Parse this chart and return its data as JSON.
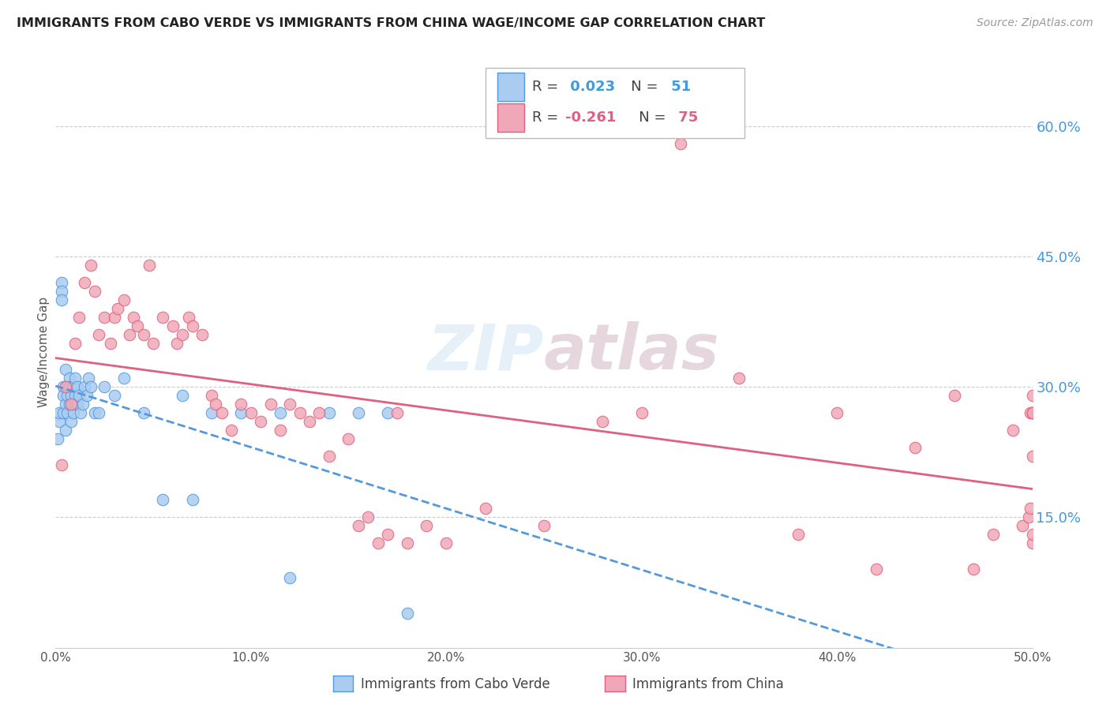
{
  "title": "IMMIGRANTS FROM CABO VERDE VS IMMIGRANTS FROM CHINA WAGE/INCOME GAP CORRELATION CHART",
  "source": "Source: ZipAtlas.com",
  "ylabel": "Wage/Income Gap",
  "ytick_labels": [
    "15.0%",
    "30.0%",
    "45.0%",
    "60.0%"
  ],
  "ytick_values": [
    15.0,
    30.0,
    45.0,
    60.0
  ],
  "xmin": 0.0,
  "xmax": 50.0,
  "ymin": 0.0,
  "ymax": 68.0,
  "cabo_verde_color": "#aaccf0",
  "china_color": "#f0a8b8",
  "cabo_verde_edge_color": "#5599dd",
  "china_edge_color": "#e06080",
  "cabo_verde_line_color": "#5599dd",
  "china_line_color": "#e06080",
  "watermark": "ZIPatlas",
  "cabo_verde_x": [
    0.1,
    0.2,
    0.2,
    0.3,
    0.3,
    0.3,
    0.4,
    0.4,
    0.4,
    0.5,
    0.5,
    0.5,
    0.6,
    0.6,
    0.6,
    0.7,
    0.7,
    0.7,
    0.8,
    0.8,
    0.9,
    0.9,
    1.0,
    1.0,
    1.0,
    1.1,
    1.1,
    1.2,
    1.3,
    1.4,
    1.5,
    1.6,
    1.7,
    1.8,
    2.0,
    2.2,
    2.5,
    3.0,
    3.5,
    4.5,
    5.5,
    6.5,
    7.0,
    8.0,
    9.5,
    11.5,
    12.0,
    14.0,
    15.5,
    17.0,
    18.0
  ],
  "cabo_verde_y": [
    24.0,
    26.0,
    27.0,
    42.0,
    41.0,
    40.0,
    30.0,
    29.0,
    27.0,
    32.0,
    25.0,
    28.0,
    30.0,
    27.0,
    29.0,
    31.0,
    28.0,
    30.0,
    26.0,
    29.0,
    27.0,
    30.0,
    28.0,
    31.0,
    29.0,
    28.0,
    30.0,
    29.0,
    27.0,
    28.0,
    30.0,
    29.0,
    31.0,
    30.0,
    27.0,
    27.0,
    30.0,
    29.0,
    31.0,
    27.0,
    17.0,
    29.0,
    17.0,
    27.0,
    27.0,
    27.0,
    8.0,
    27.0,
    27.0,
    27.0,
    4.0
  ],
  "china_x": [
    0.3,
    0.5,
    0.8,
    1.0,
    1.2,
    1.5,
    1.8,
    2.0,
    2.2,
    2.5,
    2.8,
    3.0,
    3.2,
    3.5,
    3.8,
    4.0,
    4.2,
    4.5,
    4.8,
    5.0,
    5.5,
    6.0,
    6.2,
    6.5,
    6.8,
    7.0,
    7.5,
    8.0,
    8.2,
    8.5,
    9.0,
    9.5,
    10.0,
    10.5,
    11.0,
    11.5,
    12.0,
    12.5,
    13.0,
    13.5,
    14.0,
    15.0,
    15.5,
    16.0,
    16.5,
    17.0,
    17.5,
    18.0,
    19.0,
    20.0,
    22.0,
    25.0,
    28.0,
    30.0,
    32.0,
    35.0,
    38.0,
    40.0,
    42.0,
    44.0,
    46.0,
    47.0,
    48.0,
    49.0,
    49.5,
    49.8,
    49.9,
    49.9,
    50.0,
    50.0,
    50.0,
    50.0,
    50.0,
    50.0,
    50.0
  ],
  "china_y": [
    21.0,
    30.0,
    28.0,
    35.0,
    38.0,
    42.0,
    44.0,
    41.0,
    36.0,
    38.0,
    35.0,
    38.0,
    39.0,
    40.0,
    36.0,
    38.0,
    37.0,
    36.0,
    44.0,
    35.0,
    38.0,
    37.0,
    35.0,
    36.0,
    38.0,
    37.0,
    36.0,
    29.0,
    28.0,
    27.0,
    25.0,
    28.0,
    27.0,
    26.0,
    28.0,
    25.0,
    28.0,
    27.0,
    26.0,
    27.0,
    22.0,
    24.0,
    14.0,
    15.0,
    12.0,
    13.0,
    27.0,
    12.0,
    14.0,
    12.0,
    16.0,
    14.0,
    26.0,
    27.0,
    58.0,
    31.0,
    13.0,
    27.0,
    9.0,
    23.0,
    29.0,
    9.0,
    13.0,
    25.0,
    14.0,
    15.0,
    16.0,
    27.0,
    29.0,
    22.0,
    12.0,
    13.0,
    27.0,
    27.0,
    27.0
  ]
}
